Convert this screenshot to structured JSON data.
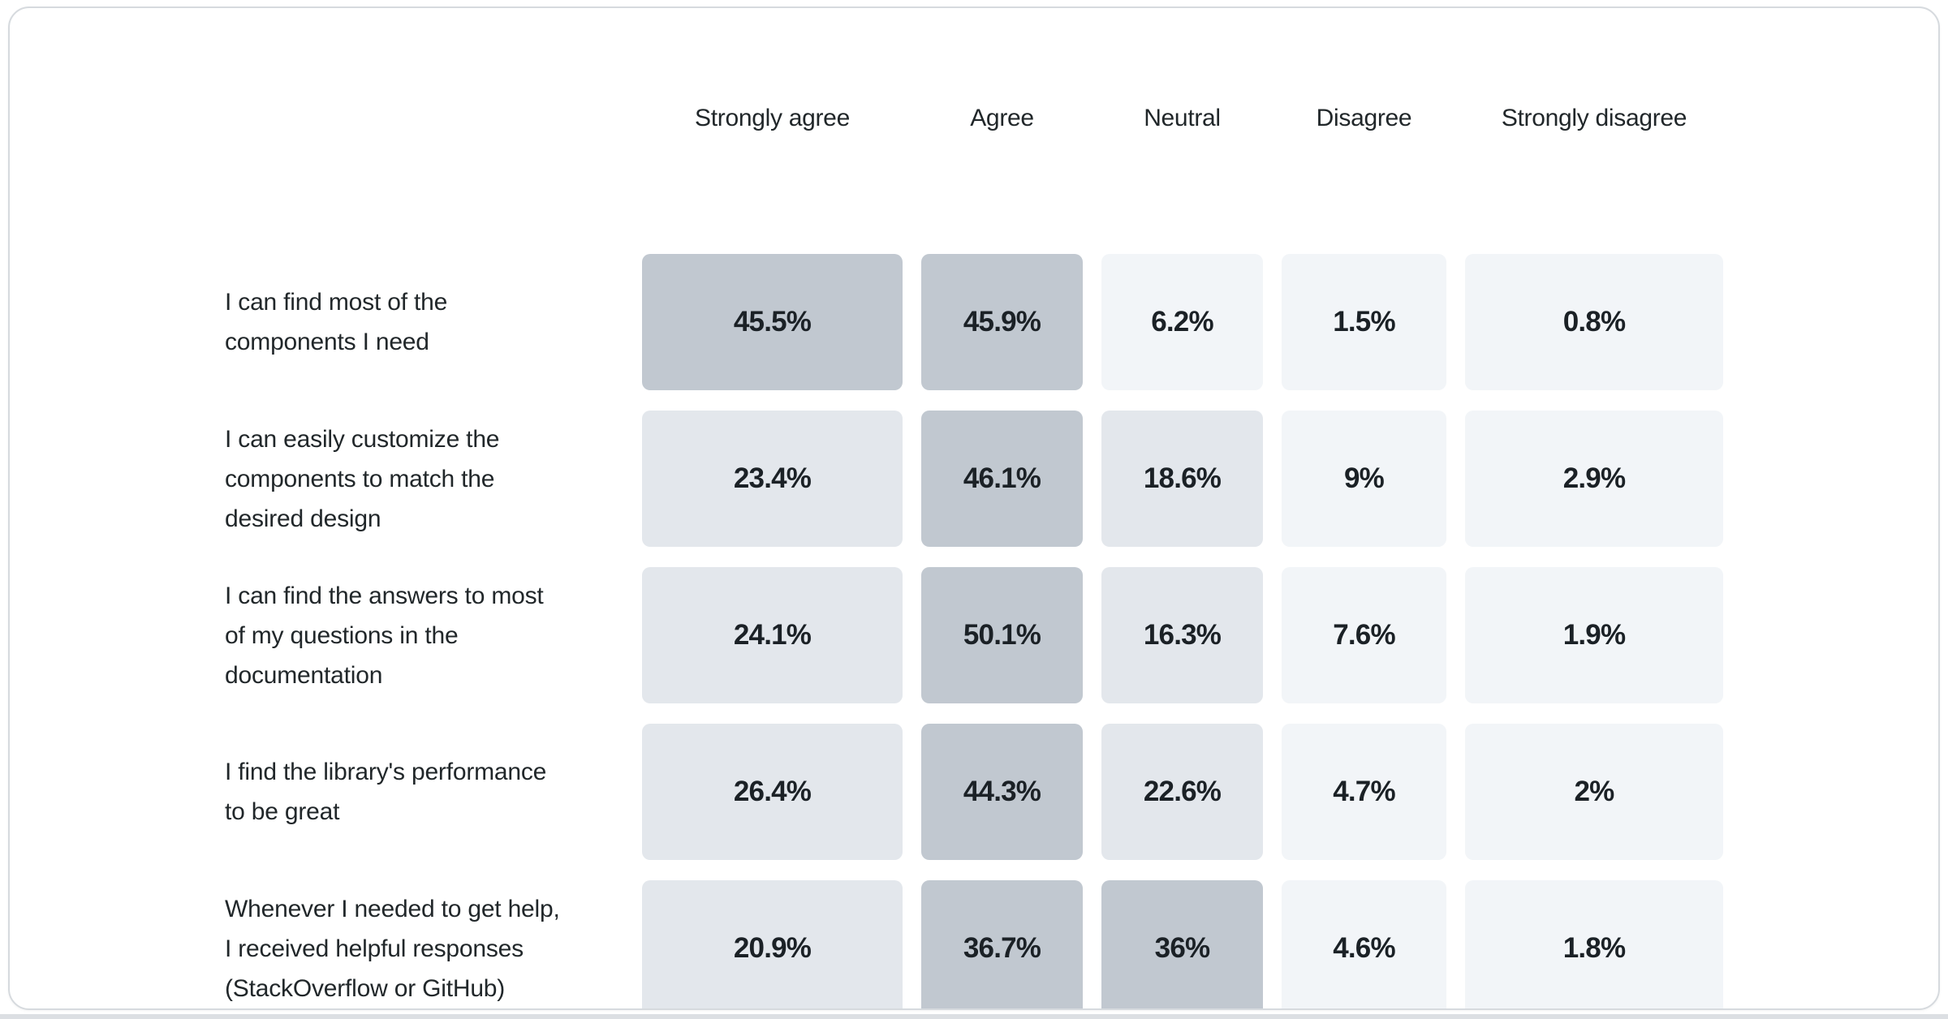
{
  "page": {
    "background": "#ffffff",
    "card_border_color": "#d6dade",
    "bottom_bar_color": "#dcdfe3",
    "text_color": "#21272a"
  },
  "chart_data": {
    "type": "heatmap",
    "title": "",
    "legend_position": "none",
    "grid": "off",
    "columns": [
      "Strongly agree",
      "Agree",
      "Neutral",
      "Disagree",
      "Strongly disagree"
    ],
    "rows": [
      {
        "label": "I can find most of the\ncomponents I need",
        "display": [
          "45.5%",
          "45.9%",
          "6.2%",
          "1.5%",
          "0.8%"
        ],
        "values": [
          45.5,
          45.9,
          6.2,
          1.5,
          0.8
        ]
      },
      {
        "label": "I can easily customize the\ncomponents to match the\ndesired design",
        "display": [
          "23.4%",
          "46.1%",
          "18.6%",
          "9%",
          "2.9%"
        ],
        "values": [
          23.4,
          46.1,
          18.6,
          9,
          2.9
        ]
      },
      {
        "label": "I can find the answers to most\nof my questions in the\ndocumentation",
        "display": [
          "24.1%",
          "50.1%",
          "16.3%",
          "7.6%",
          "1.9%"
        ],
        "values": [
          24.1,
          50.1,
          16.3,
          7.6,
          1.9
        ]
      },
      {
        "label": "I find the library's performance\nto be great",
        "display": [
          "26.4%",
          "44.3%",
          "22.6%",
          "4.7%",
          "2%"
        ],
        "values": [
          26.4,
          44.3,
          22.6,
          4.7,
          2
        ]
      },
      {
        "label": "Whenever I needed to get help,\nI received helpful responses\n(StackOverflow or GitHub)",
        "display": [
          "20.9%",
          "36.7%",
          "36%",
          "4.6%",
          "1.8%"
        ],
        "values": [
          20.9,
          36.7,
          36,
          4.6,
          1.8
        ]
      }
    ],
    "color_scale": {
      "bins": [
        {
          "min": 30,
          "color": "#c1c8d0"
        },
        {
          "min": 10,
          "color": "#e3e7ec"
        },
        {
          "min": 0,
          "color": "#f2f5f8"
        }
      ]
    }
  }
}
